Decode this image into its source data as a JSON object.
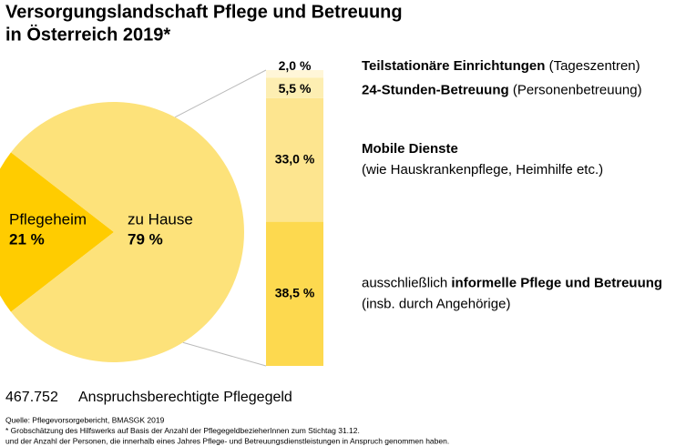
{
  "chart_data": {
    "type": "pie-of-bar",
    "title": [
      "Versorgungslandschaft Pflege und Betreuung",
      "in Österreich 2019*"
    ],
    "pie": {
      "categories": [
        "Pflegeheim",
        "zu Hause"
      ],
      "values": [
        21,
        79
      ],
      "value_labels": [
        "21 %",
        "79 %"
      ],
      "colors": [
        "#ffcc00",
        "#fde27a"
      ]
    },
    "bar": {
      "values": [
        2.0,
        5.5,
        33.0,
        38.5
      ],
      "value_labels": [
        "2,0 %",
        "5,5 %",
        "33,0 %",
        "38,5 %"
      ],
      "colors": [
        "#fff6d8",
        "#fdeeb2",
        "#fde58f",
        "#fdd94f"
      ],
      "labels": [
        [
          [
            {
              "text": "Teilstationäre Einrichtungen",
              "bold": true
            },
            {
              "text": " (Tageszentren)",
              "bold": false
            }
          ]
        ],
        [
          [
            {
              "text": "24-Stunden-Betreuung",
              "bold": true
            },
            {
              "text": " (Personenbetreuung)",
              "bold": false
            }
          ]
        ],
        [
          [
            {
              "text": "Mobile Dienste",
              "bold": true
            }
          ],
          [
            {
              "text": "(wie Hauskrankenpflege, Heimhilfe etc.)",
              "bold": false
            }
          ]
        ],
        [
          [
            {
              "text": "ausschließlich ",
              "bold": false
            },
            {
              "text": "informelle Pflege und Betreuung",
              "bold": true
            }
          ],
          [
            {
              "text": "(insb. durch Angehörige)",
              "bold": false
            }
          ]
        ]
      ]
    },
    "total": {
      "value": 467752,
      "label": "467.752",
      "caption": "Anspruchsberechtigte Pflegegeld"
    },
    "notes": [
      "Quelle: Pflegevorsorgebericht, BMASGK 2019",
      "* Grobschätzung des Hilfswerks auf Basis der Anzahl der PflegegeldbezieherInnen zum Stichtag 31.12.",
      "  und der Anzahl der Personen, die innerhalb eines Jahres Pflege- und Betreuungsdienstleistungen in Anspruch genommen haben."
    ]
  }
}
